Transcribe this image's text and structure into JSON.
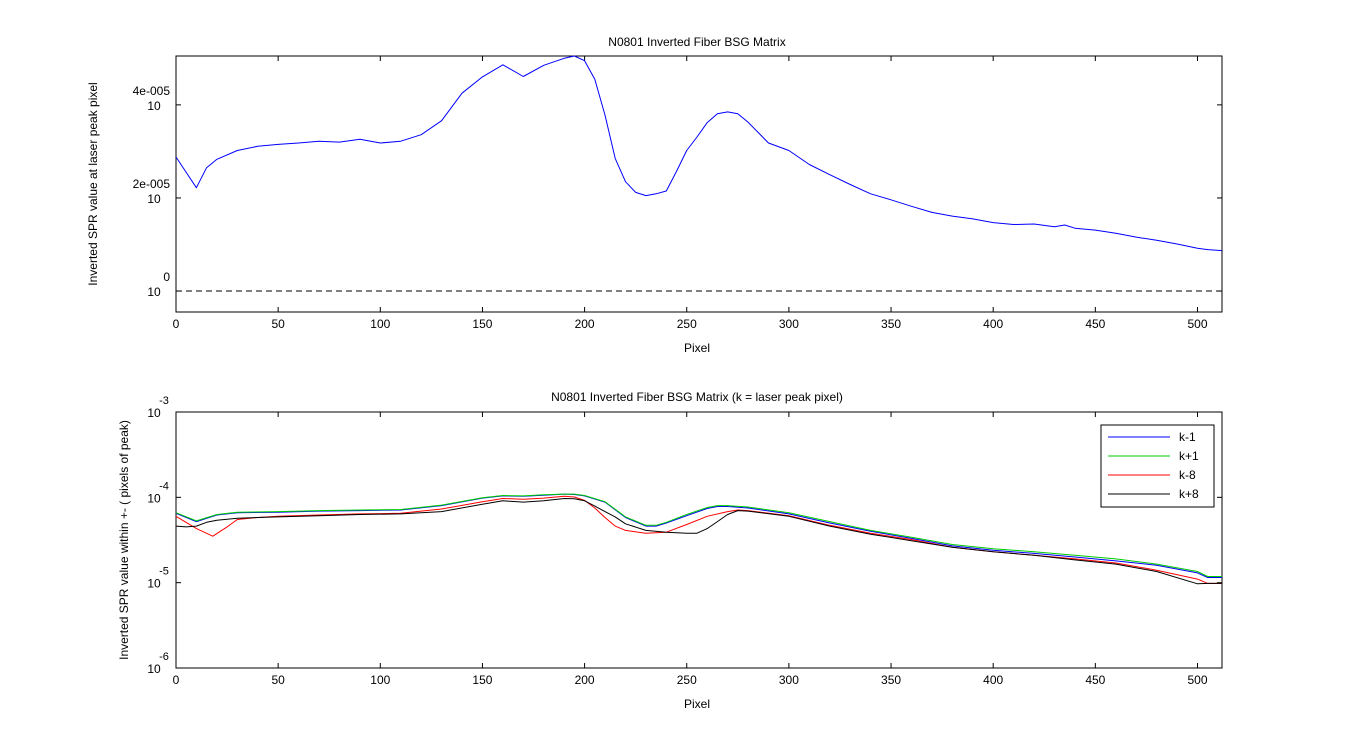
{
  "chart_data": [
    {
      "type": "line",
      "title": "N0801   Inverted Fiber BSG Matrix",
      "xlabel": "Pixel",
      "ylabel": "Inverted SPR value at laser peak pixel",
      "xlim": [
        0,
        512
      ],
      "ylim": [
        -4.5e-06,
        5.05e-05
      ],
      "x_ticks": [
        "0",
        "50",
        "100",
        "150",
        "200",
        "250",
        "300",
        "350",
        "400",
        "450",
        "500"
      ],
      "y_ticks": [
        {
          "value": 0,
          "base": "10",
          "label": "0"
        },
        {
          "value": 2e-05,
          "base": "10",
          "label": "2e-005"
        },
        {
          "value": 4e-05,
          "base": "10",
          "label": "4e-005"
        }
      ],
      "reference_line": {
        "y": 0,
        "style": "dashed",
        "color": "#000000"
      },
      "series": [
        {
          "color": "#0000ff",
          "x": [
            0,
            5,
            10,
            15,
            20,
            30,
            40,
            50,
            60,
            70,
            80,
            90,
            100,
            110,
            120,
            130,
            140,
            150,
            160,
            170,
            180,
            190,
            195,
            200,
            205,
            210,
            215,
            220,
            225,
            230,
            235,
            240,
            245,
            250,
            255,
            260,
            265,
            270,
            275,
            280,
            290,
            300,
            310,
            320,
            330,
            340,
            350,
            360,
            370,
            380,
            390,
            400,
            410,
            420,
            430,
            435,
            440,
            450,
            460,
            470,
            480,
            490,
            500,
            505,
            512
          ],
          "y": [
            2.88e-05,
            2.55e-05,
            2.22e-05,
            2.65e-05,
            2.83e-05,
            3.02e-05,
            3.11e-05,
            3.15e-05,
            3.18e-05,
            3.22e-05,
            3.2e-05,
            3.26e-05,
            3.18e-05,
            3.22e-05,
            3.36e-05,
            3.66e-05,
            4.25e-05,
            4.6e-05,
            4.86e-05,
            4.61e-05,
            4.85e-05,
            5e-05,
            5.05e-05,
            4.95e-05,
            4.55e-05,
            3.78e-05,
            2.85e-05,
            2.35e-05,
            2.12e-05,
            2.05e-05,
            2.09e-05,
            2.15e-05,
            2.57e-05,
            3.02e-05,
            3.31e-05,
            3.62e-05,
            3.81e-05,
            3.85e-05,
            3.81e-05,
            3.63e-05,
            3.18e-05,
            3.02e-05,
            2.72e-05,
            2.5e-05,
            2.29e-05,
            2.09e-05,
            1.96e-05,
            1.82e-05,
            1.69e-05,
            1.61e-05,
            1.55e-05,
            1.47e-05,
            1.43e-05,
            1.44e-05,
            1.38e-05,
            1.42e-05,
            1.35e-05,
            1.31e-05,
            1.24e-05,
            1.16e-05,
            1.09e-05,
            1.01e-05,
            9.2e-06,
            8.9e-06,
            8.7e-06
          ]
        }
      ]
    },
    {
      "type": "line",
      "title": "N0801   Inverted Fiber BSG Matrix  (k = laser peak pixel)",
      "xlabel": "Pixel",
      "ylabel": "Inverted SPR value within +- ( pixels of peak)",
      "xlim": [
        0,
        512
      ],
      "ylim": [
        1e-06,
        0.001
      ],
      "y_scale": "log",
      "x_ticks": [
        "0",
        "50",
        "100",
        "150",
        "200",
        "250",
        "300",
        "350",
        "400",
        "450",
        "500"
      ],
      "y_ticks": [
        {
          "value": 0.001,
          "base": "10",
          "exp": "-3"
        },
        {
          "value": 0.0001,
          "base": "10",
          "exp": "-4"
        },
        {
          "value": 1e-05,
          "base": "10",
          "exp": "-5"
        },
        {
          "value": 1e-06,
          "base": "10",
          "exp": "-6"
        }
      ],
      "legend": {
        "position": "top-right",
        "entries": [
          "k-1",
          "k+1",
          "k-8",
          "k+8"
        ]
      },
      "series": [
        {
          "name": "k-1",
          "color": "#0000ff",
          "x": [
            0,
            10,
            20,
            30,
            50,
            70,
            90,
            110,
            130,
            150,
            160,
            170,
            180,
            190,
            195,
            200,
            210,
            220,
            230,
            235,
            240,
            250,
            260,
            265,
            270,
            280,
            300,
            320,
            340,
            360,
            380,
            400,
            420,
            440,
            460,
            480,
            500,
            505,
            512
          ],
          "y": [
            6.5e-05,
            5.2e-05,
            6.2e-05,
            6.6e-05,
            6.7e-05,
            6.9e-05,
            7e-05,
            7.1e-05,
            8e-05,
            9.8e-05,
            0.000104,
            0.000103,
            0.000106,
            0.000109,
            0.000108,
            0.000104,
            8.8e-05,
            5.8e-05,
            4.6e-05,
            4.6e-05,
            5e-05,
            6.1e-05,
            7.4e-05,
            7.8e-05,
            7.8e-05,
            7.5e-05,
            6.4e-05,
            5e-05,
            4e-05,
            3.3e-05,
            2.7e-05,
            2.4e-05,
            2.2e-05,
            2e-05,
            1.8e-05,
            1.6e-05,
            1.3e-05,
            1.15e-05,
            1.15e-05
          ]
        },
        {
          "name": "k+1",
          "color": "#00cc00",
          "x": [
            0,
            10,
            20,
            30,
            50,
            70,
            90,
            110,
            130,
            150,
            160,
            170,
            180,
            190,
            195,
            200,
            210,
            220,
            230,
            235,
            240,
            250,
            260,
            265,
            270,
            280,
            300,
            320,
            340,
            360,
            380,
            400,
            420,
            440,
            460,
            480,
            500,
            505,
            512
          ],
          "y": [
            6.6e-05,
            5.3e-05,
            6.3e-05,
            6.7e-05,
            6.8e-05,
            7e-05,
            7.1e-05,
            7.2e-05,
            8.1e-05,
            9.9e-05,
            0.000105,
            0.000104,
            0.000107,
            0.000109,
            0.000109,
            0.000105,
            8.9e-05,
            5.9e-05,
            4.7e-05,
            4.7e-05,
            5.1e-05,
            6.3e-05,
            7.6e-05,
            8e-05,
            8e-05,
            7.7e-05,
            6.6e-05,
            5.2e-05,
            4.1e-05,
            3.4e-05,
            2.8e-05,
            2.5e-05,
            2.3e-05,
            2.1e-05,
            1.9e-05,
            1.65e-05,
            1.35e-05,
            1.18e-05,
            1.18e-05
          ]
        },
        {
          "name": "k-8",
          "color": "#ff0000",
          "x": [
            0,
            10,
            18,
            25,
            30,
            40,
            50,
            70,
            90,
            110,
            130,
            150,
            160,
            170,
            180,
            190,
            195,
            200,
            205,
            210,
            215,
            220,
            230,
            240,
            250,
            260,
            270,
            275,
            280,
            300,
            320,
            340,
            360,
            380,
            400,
            420,
            440,
            460,
            480,
            500,
            505,
            512
          ],
          "y": [
            6e-05,
            4.3e-05,
            3.5e-05,
            4.5e-05,
            5.5e-05,
            5.8e-05,
            6e-05,
            6.2e-05,
            6.4e-05,
            6.5e-05,
            7.3e-05,
            8.9e-05,
            9.7e-05,
            9.5e-05,
            9.8e-05,
            0.000103,
            0.000101,
            9.2e-05,
            7.5e-05,
            5.8e-05,
            4.6e-05,
            4.1e-05,
            3.8e-05,
            3.9e-05,
            4.8e-05,
            6e-05,
            6.8e-05,
            7.1e-05,
            7e-05,
            6.1e-05,
            4.7e-05,
            3.8e-05,
            3.2e-05,
            2.6e-05,
            2.3e-05,
            2.1e-05,
            1.9e-05,
            1.7e-05,
            1.4e-05,
            1.1e-05,
            9.8e-06,
            9.8e-06
          ]
        },
        {
          "name": "k+8",
          "color": "#000000",
          "x": [
            0,
            5,
            10,
            15,
            20,
            30,
            50,
            70,
            90,
            110,
            130,
            150,
            160,
            170,
            180,
            190,
            195,
            200,
            205,
            210,
            215,
            220,
            230,
            240,
            250,
            255,
            260,
            265,
            270,
            275,
            280,
            300,
            320,
            340,
            360,
            380,
            400,
            420,
            440,
            460,
            480,
            500,
            505,
            512
          ],
          "y": [
            4.6e-05,
            4.5e-05,
            4.6e-05,
            5.1e-05,
            5.4e-05,
            5.7e-05,
            5.9e-05,
            6.1e-05,
            6.3e-05,
            6.4e-05,
            6.8e-05,
            8.3e-05,
            9.1e-05,
            8.8e-05,
            9.1e-05,
            9.7e-05,
            9.6e-05,
            9.1e-05,
            7.9e-05,
            6.8e-05,
            5.9e-05,
            4.9e-05,
            4.1e-05,
            3.9e-05,
            3.8e-05,
            3.8e-05,
            4.3e-05,
            5.2e-05,
            6.3e-05,
            7e-05,
            6.9e-05,
            6e-05,
            4.6e-05,
            3.7e-05,
            3.1e-05,
            2.6e-05,
            2.3e-05,
            2.1e-05,
            1.85e-05,
            1.65e-05,
            1.35e-05,
            9.7e-06,
            9.8e-06,
            9.8e-06
          ]
        }
      ]
    }
  ]
}
